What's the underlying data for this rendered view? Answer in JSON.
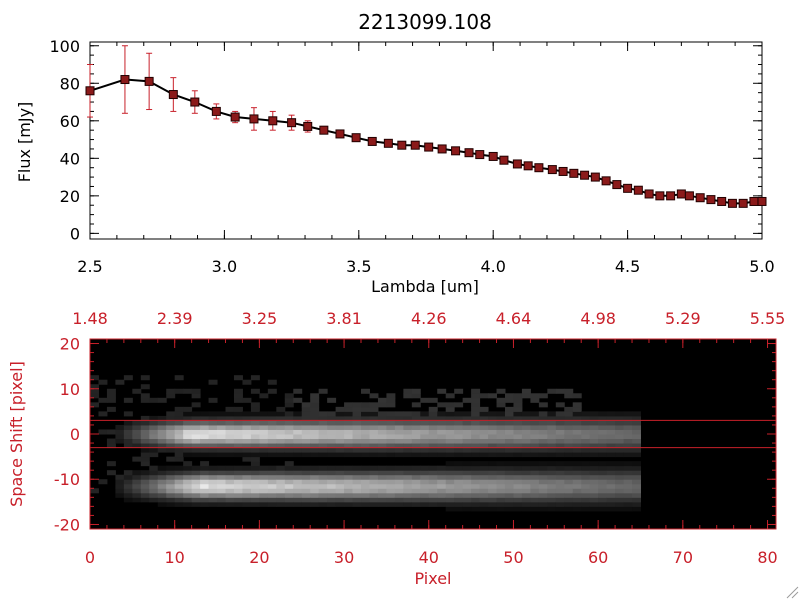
{
  "colors": {
    "axis": "#000000",
    "red": "#c8202a",
    "series_line": "#000000",
    "marker": "#8b1a1a",
    "errorbar": "#c8202a",
    "image_bg": "#000000"
  },
  "chart_data": [
    {
      "type": "line",
      "title": "2213099.108",
      "xlabel": "Lambda [um]",
      "ylabel": "Flux [mJy]",
      "xlim": [
        2.5,
        5.0
      ],
      "ylim": [
        -3,
        102
      ],
      "xticks": [
        2.5,
        3.0,
        3.5,
        4.0,
        4.5,
        5.0
      ],
      "xtick_labels": [
        "2.5",
        "3.0",
        "3.5",
        "4.0",
        "4.5",
        "5.0"
      ],
      "yticks": [
        0,
        20,
        40,
        60,
        80,
        100
      ],
      "ytick_labels": [
        "0",
        "20",
        "40",
        "60",
        "80",
        "100"
      ],
      "series": [
        {
          "name": "Flux",
          "x": [
            2.5,
            2.63,
            2.72,
            2.81,
            2.89,
            2.97,
            3.04,
            3.11,
            3.18,
            3.25,
            3.31,
            3.37,
            3.43,
            3.49,
            3.55,
            3.61,
            3.66,
            3.71,
            3.76,
            3.81,
            3.86,
            3.91,
            3.95,
            4.0,
            4.04,
            4.09,
            4.13,
            4.17,
            4.22,
            4.26,
            4.3,
            4.34,
            4.38,
            4.42,
            4.46,
            4.5,
            4.54,
            4.58,
            4.62,
            4.66,
            4.7,
            4.73,
            4.77,
            4.81,
            4.85,
            4.89,
            4.93,
            4.97,
            5.0
          ],
          "y": [
            76,
            82,
            81,
            74,
            70,
            65,
            62,
            61,
            60,
            59,
            57,
            55,
            53,
            51,
            49,
            48,
            47,
            47,
            46,
            45,
            44,
            43,
            42,
            41,
            39,
            37,
            36,
            35,
            34,
            33,
            32,
            31,
            30,
            28,
            26,
            24,
            23,
            21,
            20,
            20,
            21,
            20,
            19,
            18,
            17,
            16,
            16,
            17,
            17
          ],
          "yerr": [
            14,
            18,
            15,
            9,
            6,
            4,
            3,
            6,
            5,
            4,
            3,
            2,
            1,
            1,
            1,
            1,
            1,
            1,
            1,
            1,
            1,
            1,
            1,
            1,
            1,
            1,
            1,
            1,
            1,
            1,
            1,
            1,
            1,
            1,
            1,
            1,
            1,
            1,
            1,
            1,
            1,
            1,
            1,
            1,
            1,
            1,
            1,
            1,
            1
          ]
        }
      ]
    },
    {
      "type": "heatmap",
      "xlabel": "Pixel",
      "ylabel": "Space Shift [pixel]",
      "xlim": [
        0,
        81
      ],
      "ylim": [
        -21,
        21
      ],
      "xticks": [
        0,
        10,
        20,
        30,
        40,
        50,
        60,
        70,
        80
      ],
      "xtick_labels": [
        "0",
        "10",
        "20",
        "30",
        "40",
        "50",
        "60",
        "70",
        "80"
      ],
      "yticks": [
        -20,
        -10,
        0,
        10,
        20
      ],
      "ytick_labels": [
        "-20",
        "-10",
        "0",
        "10",
        "20"
      ],
      "top_ticks": [
        0,
        10,
        20,
        30,
        40,
        50,
        60,
        70,
        80
      ],
      "top_tick_labels": [
        "1.48",
        "2.39",
        "3.25",
        "3.81",
        "4.26",
        "4.64",
        "4.98",
        "5.29",
        "5.55"
      ],
      "aperture_lines_y": [
        3,
        -3
      ],
      "description_traces": [
        {
          "center_y": 0,
          "start_x": 4,
          "end_x": 65,
          "peak_x": 12
        },
        {
          "center_y": -11.5,
          "start_x": 4,
          "end_x": 65,
          "peak_x": 13
        }
      ]
    }
  ]
}
